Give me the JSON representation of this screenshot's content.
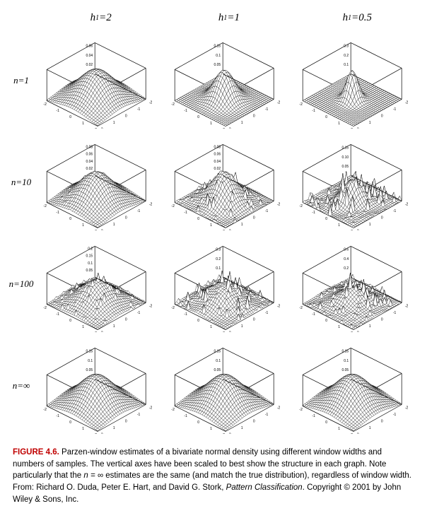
{
  "columns": [
    {
      "label_html": "h<sub>1</sub>=2",
      "h": 2.0
    },
    {
      "label_html": "h<sub>1</sub>=1",
      "h": 1.0
    },
    {
      "label_html": "h<sub>1</sub>=0.5",
      "h": 0.5
    }
  ],
  "rows": [
    {
      "label_html": "n=1",
      "n": 1,
      "roughness": [
        0.0,
        0.0,
        0.0
      ],
      "spread": [
        1.0,
        0.55,
        0.3
      ],
      "zticks": [
        [
          "0.02",
          "0.04",
          "0.06"
        ],
        [
          "0.05",
          "0.1",
          "0.15"
        ],
        [
          "0.1",
          "0.2",
          "0.3"
        ]
      ]
    },
    {
      "label_html": "n=10",
      "n": 10,
      "roughness": [
        0.08,
        0.35,
        0.75
      ],
      "spread": [
        0.95,
        0.7,
        0.5
      ],
      "zticks": [
        [
          "0.02",
          "0.04",
          "0.06",
          "0.08"
        ],
        [
          "0.02",
          "0.04",
          "0.06",
          "0.08"
        ],
        [
          "0.05",
          "0.10",
          "0.15"
        ]
      ]
    },
    {
      "label_html": "n=100",
      "n": 100,
      "roughness": [
        0.35,
        0.7,
        0.95
      ],
      "spread": [
        0.9,
        0.85,
        0.8
      ],
      "zticks": [
        [
          "0.05",
          "0.1",
          "0.15",
          "0.2"
        ],
        [
          "0.1",
          "0.2",
          "0.3"
        ],
        [
          "0.2",
          "0.4",
          "0.6"
        ]
      ]
    },
    {
      "label_html": "n=∞",
      "n": -1,
      "roughness": [
        0.0,
        0.0,
        0.0
      ],
      "spread": [
        1.0,
        1.0,
        1.0
      ],
      "zticks": [
        [
          "0.05",
          "0.1",
          "0.15"
        ],
        [
          "0.05",
          "0.1",
          "0.15"
        ],
        [
          "0.05",
          "0.1",
          "0.15"
        ]
      ]
    }
  ],
  "axes": {
    "xlim": [
      -2,
      2
    ],
    "ylim": [
      -2,
      2
    ],
    "xticks": [
      -2,
      -1,
      0,
      1,
      2
    ],
    "yticks": [
      -2,
      -1,
      0,
      1,
      2
    ]
  },
  "style": {
    "wire_color": "#000000",
    "box_color": "#000000",
    "fill_color": "#ffffff",
    "background": "#ffffff",
    "line_width": 0.35,
    "box_width": 0.7,
    "mesh_n": 26,
    "seed": 1234567
  },
  "caption": {
    "label": "FIGURE 4.6.",
    "text_before_n": "Parzen-window estimates of a bivariate normal density using different window widths and numbers of samples. The vertical axes have been scaled to best show the structure in each graph. Note particularly that the ",
    "n_expr": "n = ∞",
    "text_after_n": " estimates are the same (and match the true distribution), regardless of window width. From: Richard O. Duda, Peter E. Hart, and David G. Stork, ",
    "book": "Pattern Classification",
    "text_end": ". Copyright © 2001 by John Wiley & Sons, Inc."
  }
}
